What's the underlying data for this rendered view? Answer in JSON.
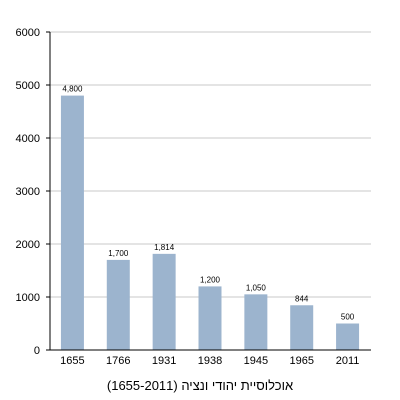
{
  "chart_data": {
    "type": "bar",
    "title": "",
    "caption": "אוכלוסיית יהודי ונציה (1655-2011)",
    "xlabel": "",
    "ylabel": "",
    "categories": [
      "1655",
      "1766",
      "1931",
      "1938",
      "1945",
      "1965",
      "2011"
    ],
    "values": [
      4800,
      1700,
      1814,
      1200,
      1050,
      844,
      500
    ],
    "data_labels": [
      "4,800",
      "1,700",
      "1,814",
      "1,200",
      "1,050",
      "844",
      "500"
    ],
    "ylim": [
      0,
      6000
    ],
    "yticks": [
      0,
      1000,
      2000,
      3000,
      4000,
      5000,
      6000
    ],
    "ytick_labels": [
      "0",
      "1000",
      "2000",
      "3000",
      "4000",
      "5000",
      "6000"
    ],
    "grid": true,
    "legend": "none",
    "colors": {
      "bar": "#9cb4ce",
      "grid": "#c8c8c8",
      "axis": "#000000"
    }
  }
}
